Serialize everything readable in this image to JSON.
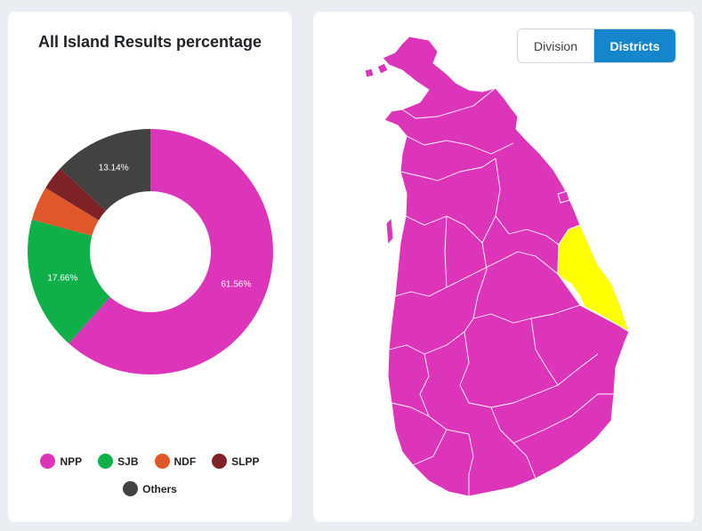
{
  "left_panel": {
    "title": "All Island Results percentage"
  },
  "chart_data": {
    "type": "pie",
    "title": "All Island Results percentage",
    "categories": [
      "NPP",
      "SJB",
      "NDF",
      "SLPP",
      "Others"
    ],
    "values": [
      61.56,
      17.66,
      4.5,
      3.14,
      13.14
    ],
    "labels": [
      "61.56%",
      "17.66%",
      "",
      "",
      "13.14%"
    ],
    "colors": [
      "#dd35b9",
      "#0fb04a",
      "#e0582a",
      "#7f2228",
      "#444141"
    ],
    "donut": true,
    "legend_placement": "bottom"
  },
  "legend": {
    "items": [
      {
        "label": "NPP",
        "color": "#dd35b9"
      },
      {
        "label": "SJB",
        "color": "#0fb04a"
      },
      {
        "label": "NDF",
        "color": "#e0582a"
      },
      {
        "label": "SLPP",
        "color": "#7f2228"
      },
      {
        "label": "Others",
        "color": "#444141"
      }
    ]
  },
  "map_panel": {
    "toggle": {
      "division_label": "Division",
      "districts_label": "Districts",
      "active": "Districts"
    },
    "region_colors": {
      "NPP": "#dd35b9",
      "highlight": "#ffff00"
    }
  }
}
